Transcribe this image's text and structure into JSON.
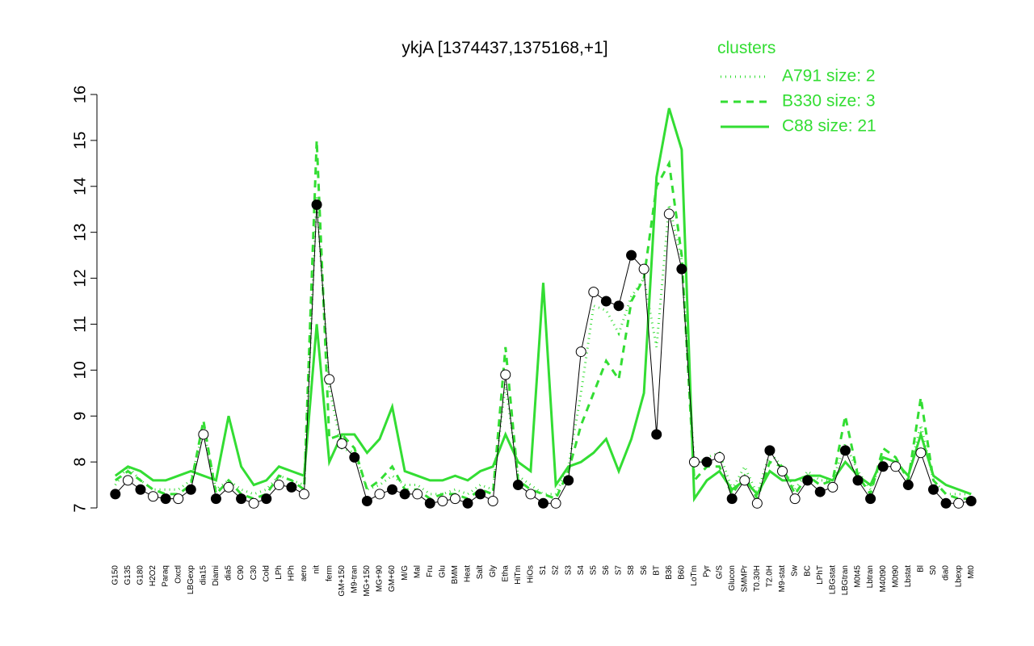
{
  "chart_data": {
    "type": "line",
    "title": "ykjA [1374437,1375168,+1]",
    "legend_title": "clusters",
    "categories": [
      "G150",
      "G135",
      "G180",
      "H2O2",
      "Paraq",
      "Oxctl",
      "LBGexp",
      "dia15",
      "Diami",
      "dia5",
      "C90",
      "C30",
      "Cold",
      "LPh",
      "HPh",
      "aero",
      "nit",
      "ferm",
      "GM+150",
      "M9-tran",
      "MG+150",
      "MG+90",
      "GM+60",
      "M/G",
      "Mal",
      "Fru",
      "Glu",
      "BMM",
      "Heat",
      "Salt",
      "Gly",
      "Etha",
      "HiTm",
      "HiOs",
      "S1",
      "S2",
      "S3",
      "S4",
      "S5",
      "S6",
      "S7",
      "S8",
      "S6",
      "BT",
      "B36",
      "B60",
      "LoTm",
      "Pyr",
      "G/S",
      "Glucon",
      "SMMPr",
      "T0.30H",
      "T2.0H",
      "M9-stat",
      "Sw",
      "BC",
      "LPhT",
      "LBGstat",
      "LBGtran",
      "M0t45",
      "Lbtran",
      "M40t90",
      "M0t90",
      "Lbstat",
      "Bl",
      "S0",
      "dia0",
      "Lbexp",
      "Mt0"
    ],
    "values": [
      7.3,
      7.6,
      7.4,
      7.25,
      7.2,
      7.2,
      7.4,
      8.6,
      7.2,
      7.45,
      7.2,
      7.1,
      7.2,
      7.5,
      7.45,
      7.3,
      13.6,
      9.8,
      8.4,
      8.1,
      7.15,
      7.3,
      7.4,
      7.3,
      7.3,
      7.1,
      7.15,
      7.2,
      7.1,
      7.3,
      7.15,
      9.9,
      7.5,
      7.3,
      7.1,
      7.1,
      7.6,
      10.4,
      11.7,
      11.5,
      11.4,
      12.5,
      12.2,
      8.6,
      13.4,
      12.2,
      8.0,
      8.0,
      8.1,
      7.2,
      7.6,
      7.1,
      8.25,
      7.8,
      7.2,
      7.6,
      7.35,
      7.45,
      8.25,
      7.6,
      7.2,
      7.9,
      7.9,
      7.5,
      8.2,
      7.4,
      7.1,
      7.1,
      7.15
    ],
    "line_color": "#000000",
    "marker_colors": [
      "#000000",
      "#ffffff",
      "#000000",
      "#ffffff",
      "#000000",
      "#ffffff",
      "#000000",
      "#ffffff",
      "#000000",
      "#ffffff",
      "#000000",
      "#ffffff",
      "#000000",
      "#ffffff",
      "#000000",
      "#ffffff",
      "#000000",
      "#ffffff",
      "#ffffff",
      "#000000",
      "#000000",
      "#ffffff",
      "#000000",
      "#000000",
      "#ffffff",
      "#000000",
      "#ffffff",
      "#ffffff",
      "#000000",
      "#000000",
      "#ffffff",
      "#ffffff",
      "#000000",
      "#ffffff",
      "#000000",
      "#ffffff",
      "#000000",
      "#ffffff",
      "#ffffff",
      "#000000",
      "#000000",
      "#000000",
      "#ffffff",
      "#000000",
      "#ffffff",
      "#000000",
      "#ffffff",
      "#000000",
      "#ffffff",
      "#000000",
      "#ffffff",
      "#ffffff",
      "#000000",
      "#ffffff",
      "#ffffff",
      "#000000",
      "#000000",
      "#ffffff",
      "#000000",
      "#000000",
      "#000000",
      "#000000",
      "#ffffff",
      "#000000",
      "#ffffff",
      "#000000",
      "#000000",
      "#ffffff",
      "#000000"
    ],
    "series": [
      {
        "name": "A791 size: 2",
        "color": "#33dd33",
        "dash": "1,5",
        "values": [
          7.5,
          7.9,
          7.6,
          7.4,
          7.4,
          7.4,
          7.6,
          8.7,
          7.4,
          7.6,
          7.4,
          7.3,
          7.4,
          7.7,
          7.6,
          7.5,
          13.8,
          9.6,
          8.3,
          8.2,
          7.4,
          7.5,
          7.7,
          7.5,
          7.5,
          7.3,
          7.3,
          7.4,
          7.3,
          7.5,
          7.4,
          9.7,
          7.7,
          7.5,
          7.3,
          7.3,
          7.9,
          9.5,
          11.4,
          11.3,
          10.8,
          11.6,
          12.0,
          10.5,
          13.6,
          12.4,
          7.9,
          8.1,
          8.2,
          7.4,
          7.9,
          7.3,
          8.2,
          7.9,
          7.4,
          7.8,
          7.6,
          7.6,
          8.4,
          7.8,
          7.4,
          8.1,
          8.0,
          7.7,
          8.8,
          7.6,
          7.3,
          7.3,
          7.3
        ]
      },
      {
        "name": "B330 size: 3",
        "color": "#33dd33",
        "dash": "9,7",
        "values": [
          7.6,
          7.8,
          7.6,
          7.4,
          7.3,
          7.3,
          7.5,
          8.9,
          7.3,
          7.6,
          7.3,
          7.2,
          7.3,
          7.7,
          7.6,
          7.4,
          15.0,
          8.5,
          8.6,
          8.3,
          7.4,
          7.6,
          7.9,
          7.4,
          7.4,
          7.2,
          7.3,
          7.3,
          7.2,
          7.4,
          7.3,
          10.5,
          7.6,
          7.4,
          7.3,
          7.2,
          7.8,
          8.8,
          9.5,
          10.2,
          9.8,
          11.5,
          12.0,
          14.0,
          14.5,
          12.5,
          7.6,
          7.9,
          7.9,
          7.3,
          7.7,
          7.2,
          8.0,
          7.9,
          7.3,
          7.7,
          7.5,
          7.6,
          9.0,
          7.7,
          7.3,
          8.3,
          8.1,
          7.6,
          9.4,
          7.6,
          7.3,
          7.2,
          7.2
        ]
      },
      {
        "name": "C88 size: 21",
        "color": "#33dd33",
        "dash": "none",
        "values": [
          7.7,
          7.9,
          7.8,
          7.6,
          7.6,
          7.7,
          7.8,
          7.7,
          7.6,
          9.0,
          7.9,
          7.5,
          7.6,
          7.9,
          7.8,
          7.7,
          11.0,
          8.0,
          8.6,
          8.6,
          8.2,
          8.5,
          9.2,
          7.8,
          7.7,
          7.6,
          7.6,
          7.7,
          7.6,
          7.8,
          7.9,
          8.6,
          8.0,
          7.8,
          11.9,
          7.5,
          7.9,
          8.0,
          8.2,
          8.5,
          7.8,
          8.5,
          9.5,
          14.2,
          15.7,
          14.8,
          7.2,
          7.6,
          7.8,
          7.4,
          7.6,
          7.3,
          7.8,
          7.6,
          7.6,
          7.7,
          7.7,
          7.6,
          8.0,
          7.7,
          7.5,
          8.1,
          8.0,
          7.7,
          8.6,
          7.7,
          7.5,
          7.4,
          7.3
        ]
      }
    ],
    "ylim": [
      7,
      16
    ],
    "yticks": [
      7,
      8,
      9,
      10,
      11,
      12,
      13,
      14,
      15,
      16
    ]
  }
}
